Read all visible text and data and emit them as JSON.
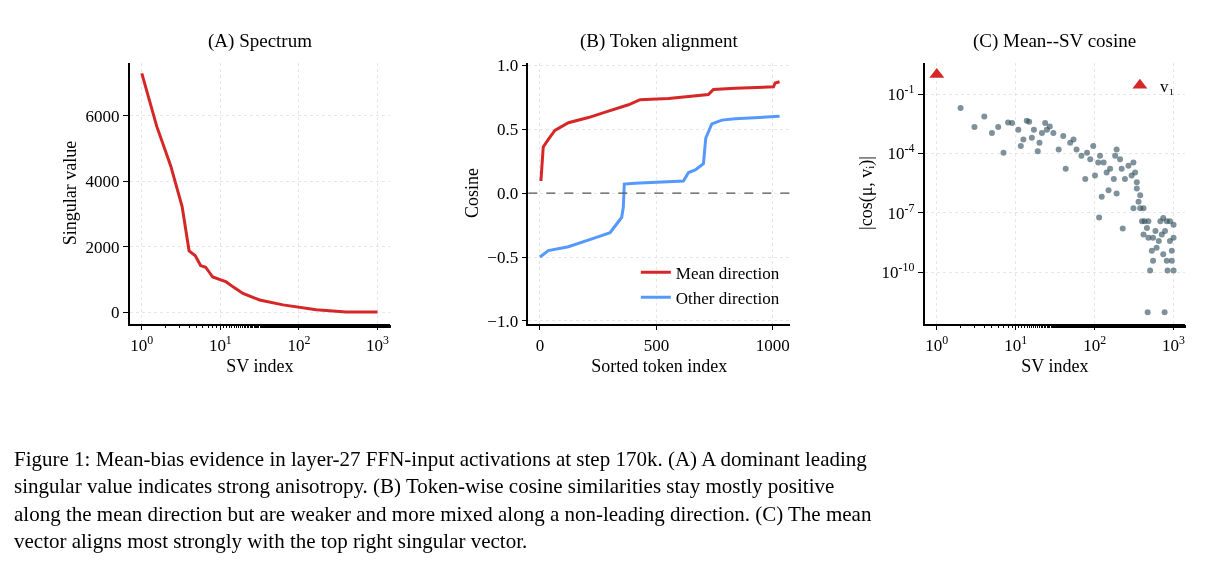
{
  "chart_data": [
    {
      "type": "line",
      "title": "(A) Spectrum",
      "xlabel": "SV index",
      "ylabel": "Singular value",
      "log": "x",
      "grid": true,
      "legend": false,
      "xlim": [
        0.7,
        1450
      ],
      "xticks": [
        {
          "value": 1,
          "label": "10$^{0}$"
        },
        {
          "value": 10,
          "label": "10$^{1}$"
        },
        {
          "value": 100,
          "label": "10$^{2}$"
        },
        {
          "value": 1000,
          "label": "10$^{3}$"
        }
      ],
      "ylim": [
        -350,
        7620
      ],
      "yticks": [
        0,
        2000,
        4000,
        6000
      ],
      "series": [
        {
          "color": "#d62728",
          "x": [
            1,
            1.55,
            2.33,
            3.26,
            4.0,
            4.8,
            5.6,
            6.5,
            8,
            11.9,
            14.5,
            19.4,
            31.6,
            62.8,
            166,
            398,
            1000
          ],
          "values": [
            7290,
            5670,
            4470,
            3220,
            1870,
            1720,
            1420,
            1370,
            1070,
            920,
            770,
            570,
            370,
            220,
            70,
            0,
            0
          ]
        }
      ],
      "annotations": [
        "Figure 1: Mean-bias evidence in layer-27 FFN-input activations at step 170k. (A) A dominant leading singular value indicates strong anisotropy. (B) Token-wise cosine similarities stay mostly positive along the mean direction but are weaker and more mixed along a non-leading direction. (C) The mean vector aligns most strongly with the top right singular vector."
      ]
    },
    {
      "type": "line",
      "title": "(B) Token alignment",
      "xlabel": "Sorted token index",
      "ylabel": "Cosine",
      "grid": true,
      "legend": "bottom right",
      "xlim": [
        -50,
        1074
      ],
      "xticks": [
        0,
        500,
        1000
      ],
      "ylim": [
        -1.02,
        1.02
      ],
      "yticks": [
        {
          "value": -1,
          "label": "−1.0"
        },
        {
          "value": -0.5,
          "label": "−0.5"
        },
        {
          "value": 0,
          "label": "0.0"
        },
        {
          "value": 0.5,
          "label": "0.5"
        },
        {
          "value": 1,
          "label": "1.0"
        }
      ],
      "ref_lines": [
        {
          "axis": "y",
          "value": 0,
          "color": "#555555",
          "line_style": "dashed"
        }
      ],
      "series": [
        {
          "name": "Mean direction",
          "color": "#d62728",
          "x": [
            4,
            14,
            36,
            64,
            122,
            208,
            294,
            380,
            430,
            552,
            723,
            745,
            838,
            1003,
            1010,
            1029
          ],
          "values": [
            0.094,
            0.36,
            0.42,
            0.49,
            0.55,
            0.59,
            0.64,
            0.69,
            0.73,
            0.74,
            0.77,
            0.81,
            0.82,
            0.83,
            0.86,
            0.87
          ]
        },
        {
          "name": "Other direction",
          "color": "#5599ff",
          "x": [
            0,
            36,
            122,
            236,
            301,
            330,
            351,
            358,
            362,
            408,
            616,
            638,
            667,
            702,
            712,
            738,
            781,
            838,
            1029
          ],
          "values": [
            -0.5,
            -0.45,
            -0.42,
            -0.35,
            -0.31,
            -0.24,
            -0.19,
            -0.11,
            0.07,
            0.077,
            0.094,
            0.16,
            0.18,
            0.23,
            0.43,
            0.54,
            0.57,
            0.58,
            0.6
          ]
        }
      ]
    },
    {
      "type": "scatter",
      "title": "(C) Mean--SV cosine",
      "xlabel": "SV index",
      "ylabel": "|cos(μ, vᵢ)|",
      "log": "xy",
      "grid": true,
      "legend": "top right",
      "xlim": [
        0.7,
        1400
      ],
      "xticks": [
        {
          "value": 1,
          "label": "10$^{0}$"
        },
        {
          "value": 10,
          "label": "10$^{1}$"
        },
        {
          "value": 100,
          "label": "10$^{2}$"
        },
        {
          "value": 1000,
          "label": "10$^{3}$"
        }
      ],
      "ylim": [
        2.5e-13,
        4
      ],
      "yticks": [
        {
          "value": 1e-10,
          "label": "10$^{-10}$"
        },
        {
          "value": 1e-07,
          "label": "10$^{-7}$"
        },
        {
          "value": 0.0001,
          "label": "10$^{-4}$"
        },
        {
          "value": 0.1,
          "label": "10$^{-1}$"
        }
      ],
      "series": [
        {
          "color": "#2a4a58",
          "marker": "circle",
          "x": [
            2,
            4,
            3,
            5,
            6,
            7,
            8,
            9,
            10.8,
            11.6,
            12.5,
            13.8,
            14.8,
            16,
            17,
            19,
            20,
            21.5,
            23.6,
            24.8,
            27,
            30,
            35,
            40,
            43,
            49,
            59,
            68,
            76,
            88,
            101,
            111,
            114,
            123,
            130,
            150,
            157,
            182,
            190,
            220,
            227,
            242,
            268,
            294,
            326,
            342,
            360,
            378,
            398,
            416,
            460,
            480,
            505,
            470,
            770,
            550,
            680,
            820,
            1000,
            1000,
            840,
            740,
            900,
            610,
            530,
            950,
            710,
            430,
            310,
            210,
            175,
            142,
            96,
            80,
            54,
            117,
            190,
            310,
            342,
            378,
            416,
            480,
            590,
            780,
            900,
            650,
            820,
            550,
            740,
            950,
            1000
          ],
          "values": [
            0.02,
            0.0074,
            0.0022,
            0.0011,
            0.0022,
            0.00011,
            0.0037,
            0.0035,
            0.0016,
            0.00024,
            0.00051,
            0.0046,
            0.0041,
            0.00063,
            0.0016,
            0.00013,
            0.00035,
            0.0011,
            0.0035,
            0.0016,
            0.0023,
            0.0011,
            0.00016,
            0.00076,
            1.7e-05,
            0.00035,
            0.00016,
            7.6e-05,
            5.2e-06,
            5.2e-05,
            7.8e-06,
            3.5e-05,
            5.8e-08,
            6.5e-07,
            3.5e-05,
            1.4e-06,
            1.7e-05,
            7.6e-05,
            9.5e-07,
            1.7e-05,
            1.6e-08,
            5.2e-06,
            2.4e-05,
            7.8e-06,
            1.1e-05,
            1.7e-06,
            3.6e-07,
            1.7e-07,
            3.7e-08,
            7.9e-09,
            1.7e-08,
            5.5e-09,
            1.2e-10,
            9.3e-13,
            9.3e-13,
            3.8e-10,
            3.7e-08,
            3.7e-08,
            2.5e-08,
            1.2e-10,
            1.2e-10,
            7.9e-10,
            3.7e-09,
            1.7e-09,
            1.2e-09,
            1.2e-09,
            7.9e-09,
            3.7e-08,
            3.5e-05,
            5.2e-05,
            5.2e-06,
            1.1e-05,
            0.00024,
            0.00011,
            0.00051,
            7.6e-05,
            0.00016,
            1.7e-07,
            3.5e-06,
            7.8e-07,
            1.7e-07,
            3.7e-08,
            1.2e-08,
            1.2e-08,
            3.7e-08,
            3.7e-09,
            3.8e-10,
            5.5e-09,
            5.4e-08,
            3.8e-10,
            5.5e-09
          ]
        },
        {
          "name": "v₁",
          "color": "#d62728",
          "marker": "triangle",
          "x": [
            1
          ],
          "values": [
            1
          ]
        }
      ]
    }
  ]
}
